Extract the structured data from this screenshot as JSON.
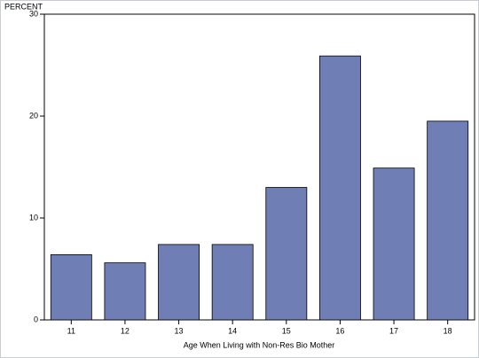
{
  "chart_data": {
    "type": "bar",
    "y_label": "PERCENT",
    "x_label": "Age When Living with Non-Res Bio Mother",
    "categories": [
      "11",
      "12",
      "13",
      "14",
      "15",
      "16",
      "17",
      "18"
    ],
    "values": [
      6.4,
      5.6,
      7.4,
      7.4,
      13.0,
      25.9,
      14.9,
      19.5
    ],
    "color": "#6f7fb5",
    "ylim": [
      0,
      30
    ],
    "yticks": [
      0,
      10,
      20,
      30
    ]
  }
}
